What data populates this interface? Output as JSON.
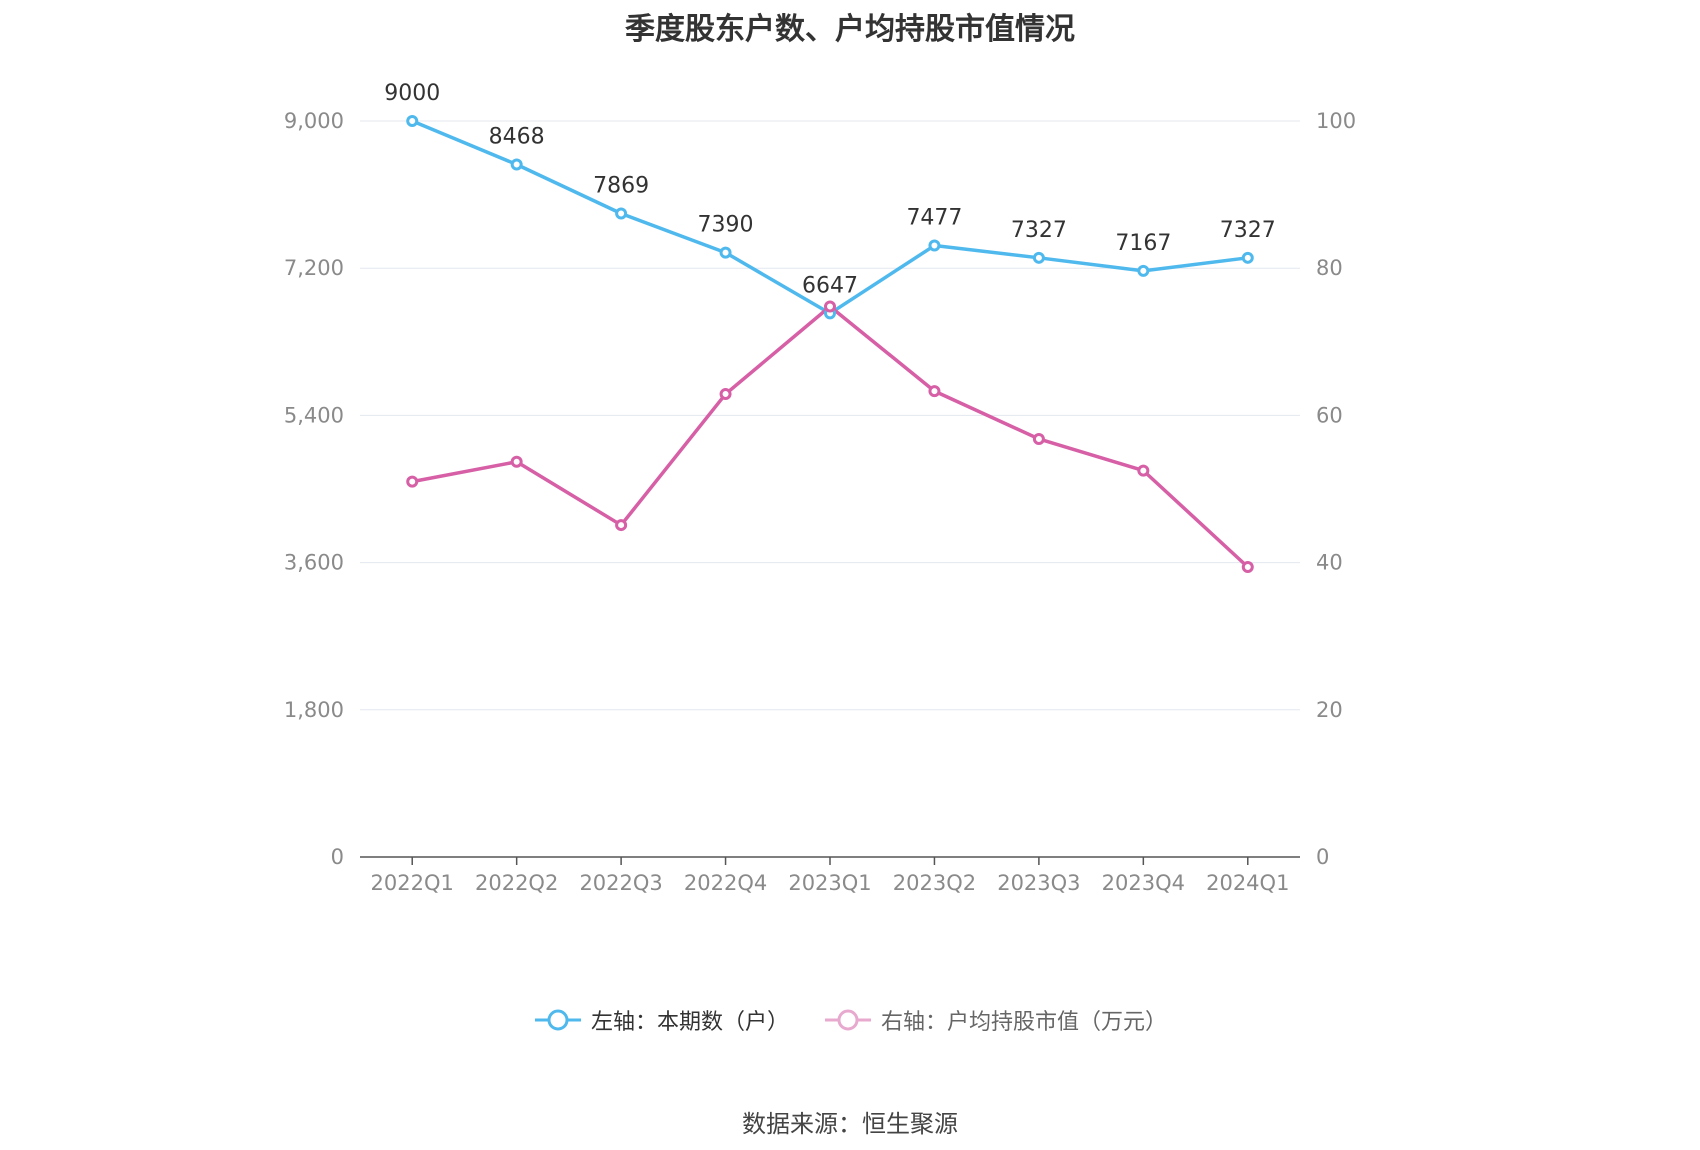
{
  "title": "季度股东户数、户均持股市值情况",
  "source": "数据来源：恒生聚源",
  "colors": {
    "left": "#4fb9ee",
    "right": "#d65fa6",
    "grid": "#e3e7ef",
    "axis": "#555555"
  },
  "legend": [
    {
      "label": "左轴：本期数（户）",
      "color": "#4fb9ee"
    },
    {
      "label": "右轴：户均持股市值（万元）",
      "color": "#e8a9cf"
    }
  ],
  "chart_data": {
    "type": "line",
    "categories": [
      "2022Q1",
      "2022Q2",
      "2022Q3",
      "2022Q4",
      "2023Q1",
      "2023Q2",
      "2023Q3",
      "2023Q4",
      "2024Q1"
    ],
    "y_left": {
      "min": 0,
      "max": 9000,
      "ticks": [
        "0",
        "1,800",
        "3,600",
        "5,400",
        "7,200",
        "9,000"
      ]
    },
    "y_right": {
      "min": 0,
      "max": 100,
      "ticks": [
        "0",
        "20",
        "40",
        "60",
        "80",
        "100"
      ]
    },
    "grid": true,
    "legend_position": "bottom",
    "series": [
      {
        "name": "左轴：本期数（户）",
        "axis": "left",
        "values": [
          9000,
          8468,
          7869,
          7390,
          6647,
          7477,
          7327,
          7167,
          7327
        ],
        "labels": [
          "9000",
          "8468",
          "7869",
          "7390",
          "6647",
          "7477",
          "7327",
          "7167",
          "7327"
        ]
      },
      {
        "name": "右轴：户均持股市值（万元）",
        "axis": "right",
        "values": [
          51.0,
          53.7,
          45.1,
          62.9,
          74.8,
          63.3,
          56.8,
          52.5,
          39.4
        ]
      }
    ]
  }
}
